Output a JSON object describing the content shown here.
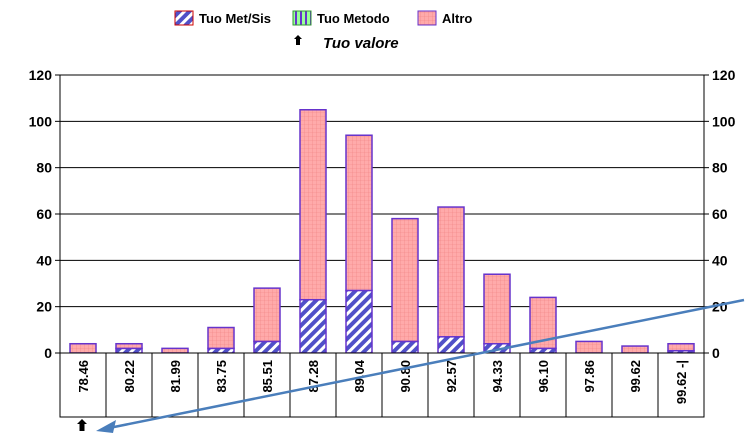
{
  "chart_data": {
    "type": "bar",
    "stacked": true,
    "categories": [
      "78.46",
      "80.22",
      "81.99",
      "83.75",
      "85.51",
      "87.28",
      "89.04",
      "90.80",
      "92.57",
      "94.33",
      "96.10",
      "97.86",
      "99.62",
      "99.62 -|"
    ],
    "series": [
      {
        "name": "Tuo Met/Sis",
        "color": "#6666cc",
        "pattern": "diagonal-hatch",
        "values": [
          0,
          2,
          0,
          2,
          5,
          23,
          27,
          5,
          7,
          4,
          2,
          0,
          0,
          1
        ]
      },
      {
        "name": "Tuo Metodo",
        "color": "#99ff99",
        "pattern": "vertical-stripes",
        "values": [
          0,
          0,
          0,
          0,
          0,
          0,
          0,
          0,
          0,
          0,
          0,
          0,
          0,
          0
        ]
      },
      {
        "name": "Altro",
        "color": "#ff9999",
        "pattern": "grid",
        "values": [
          4,
          2,
          2,
          9,
          23,
          82,
          67,
          53,
          56,
          30,
          22,
          5,
          3,
          3
        ]
      }
    ],
    "marker_label": "Tuo valore",
    "marker_category": "78.46",
    "ylim": [
      0,
      120
    ],
    "yticks": [
      "0",
      "20",
      "40",
      "60",
      "80",
      "100",
      "120"
    ],
    "yticks_right": [
      "0",
      "20",
      "40",
      "60",
      "80",
      "100",
      "120"
    ],
    "grid": true,
    "legend_position": "top"
  }
}
